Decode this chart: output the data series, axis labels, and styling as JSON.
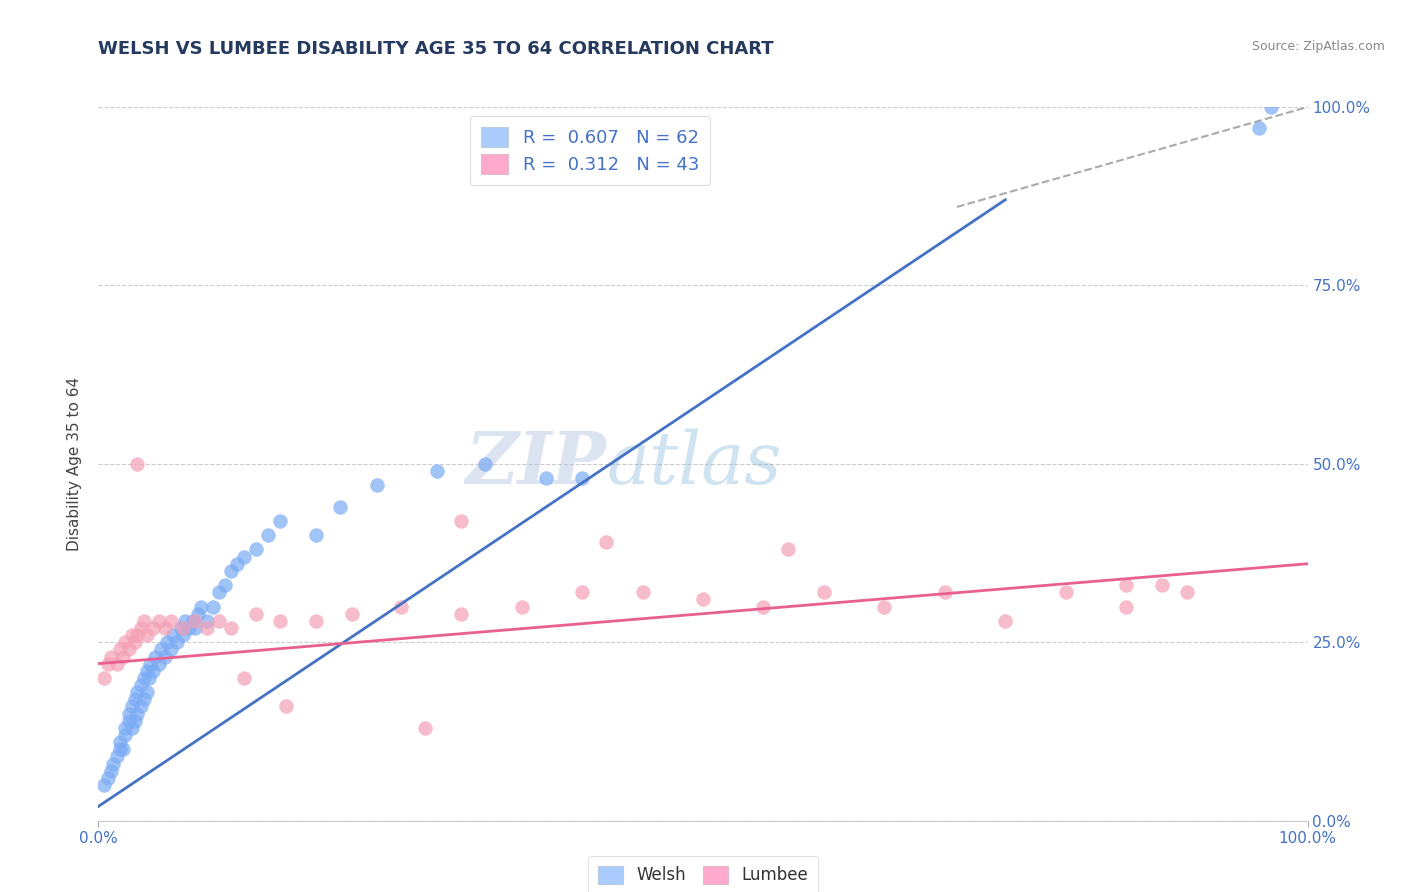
{
  "title": "WELSH VS LUMBEE DISABILITY AGE 35 TO 64 CORRELATION CHART",
  "source": "Source: ZipAtlas.com",
  "ylabel": "Disability Age 35 to 64",
  "xlim": [
    0.0,
    1.0
  ],
  "ylim": [
    0.0,
    1.0
  ],
  "ytick_positions": [
    0.0,
    0.25,
    0.5,
    0.75,
    1.0
  ],
  "ytick_labels": [
    "0.0%",
    "25.0%",
    "50.0%",
    "75.0%",
    "100.0%"
  ],
  "xtick_positions": [
    0.0,
    1.0
  ],
  "xtick_labels": [
    "0.0%",
    "100.0%"
  ],
  "title_color": "#253A5E",
  "axis_tick_color": "#4472C4",
  "welsh_color": "#7AABF5",
  "lumbee_color": "#F5A0B5",
  "welsh_line_color": "#4472C4",
  "lumbee_line_color": "#E86090",
  "diagonal_color": "#AAAAAA",
  "grid_color": "#CCCCCC",
  "watermark_color": "#C5D8EE",
  "welsh_R": 0.607,
  "welsh_N": 62,
  "lumbee_R": 0.312,
  "lumbee_N": 43,
  "welsh_line": [
    0.0,
    0.02,
    0.75,
    0.87
  ],
  "lumbee_line": [
    0.0,
    0.22,
    1.0,
    0.36
  ],
  "diagonal_line": [
    0.71,
    0.86,
    1.0,
    1.0
  ],
  "welsh_scatter_x": [
    0.005,
    0.008,
    0.01,
    0.012,
    0.015,
    0.018,
    0.018,
    0.02,
    0.022,
    0.022,
    0.025,
    0.025,
    0.028,
    0.028,
    0.03,
    0.03,
    0.032,
    0.032,
    0.035,
    0.035,
    0.038,
    0.038,
    0.04,
    0.04,
    0.042,
    0.043,
    0.045,
    0.047,
    0.05,
    0.052,
    0.055,
    0.057,
    0.06,
    0.062,
    0.065,
    0.068,
    0.07,
    0.072,
    0.075,
    0.078,
    0.08,
    0.082,
    0.085,
    0.09,
    0.095,
    0.1,
    0.105,
    0.11,
    0.115,
    0.12,
    0.13,
    0.14,
    0.15,
    0.18,
    0.2,
    0.23,
    0.28,
    0.32,
    0.37,
    0.4,
    0.96,
    0.97
  ],
  "welsh_scatter_y": [
    0.05,
    0.06,
    0.07,
    0.08,
    0.09,
    0.1,
    0.11,
    0.1,
    0.12,
    0.13,
    0.14,
    0.15,
    0.13,
    0.16,
    0.14,
    0.17,
    0.15,
    0.18,
    0.16,
    0.19,
    0.17,
    0.2,
    0.18,
    0.21,
    0.2,
    0.22,
    0.21,
    0.23,
    0.22,
    0.24,
    0.23,
    0.25,
    0.24,
    0.26,
    0.25,
    0.27,
    0.26,
    0.28,
    0.27,
    0.28,
    0.27,
    0.29,
    0.3,
    0.28,
    0.3,
    0.32,
    0.33,
    0.35,
    0.36,
    0.37,
    0.38,
    0.4,
    0.42,
    0.4,
    0.44,
    0.47,
    0.49,
    0.5,
    0.48,
    0.48,
    0.97,
    1.0
  ],
  "lumbee_scatter_x": [
    0.005,
    0.008,
    0.01,
    0.015,
    0.018,
    0.02,
    0.022,
    0.025,
    0.028,
    0.03,
    0.032,
    0.035,
    0.038,
    0.04,
    0.045,
    0.05,
    0.055,
    0.06,
    0.07,
    0.08,
    0.09,
    0.1,
    0.11,
    0.13,
    0.15,
    0.18,
    0.21,
    0.25,
    0.3,
    0.35,
    0.4,
    0.45,
    0.5,
    0.55,
    0.6,
    0.65,
    0.7,
    0.75,
    0.8,
    0.85,
    0.9,
    0.032,
    0.3
  ],
  "lumbee_scatter_y": [
    0.2,
    0.22,
    0.23,
    0.22,
    0.24,
    0.23,
    0.25,
    0.24,
    0.26,
    0.25,
    0.26,
    0.27,
    0.28,
    0.26,
    0.27,
    0.28,
    0.27,
    0.28,
    0.27,
    0.28,
    0.27,
    0.28,
    0.27,
    0.29,
    0.28,
    0.28,
    0.29,
    0.3,
    0.29,
    0.3,
    0.32,
    0.32,
    0.31,
    0.3,
    0.32,
    0.3,
    0.32,
    0.28,
    0.32,
    0.3,
    0.32,
    0.5,
    0.42
  ],
  "lumbee_outlier_x": [
    0.12,
    0.155,
    0.27,
    0.42,
    0.57,
    0.85,
    0.88
  ],
  "lumbee_outlier_y": [
    0.2,
    0.16,
    0.13,
    0.39,
    0.38,
    0.33,
    0.33
  ]
}
